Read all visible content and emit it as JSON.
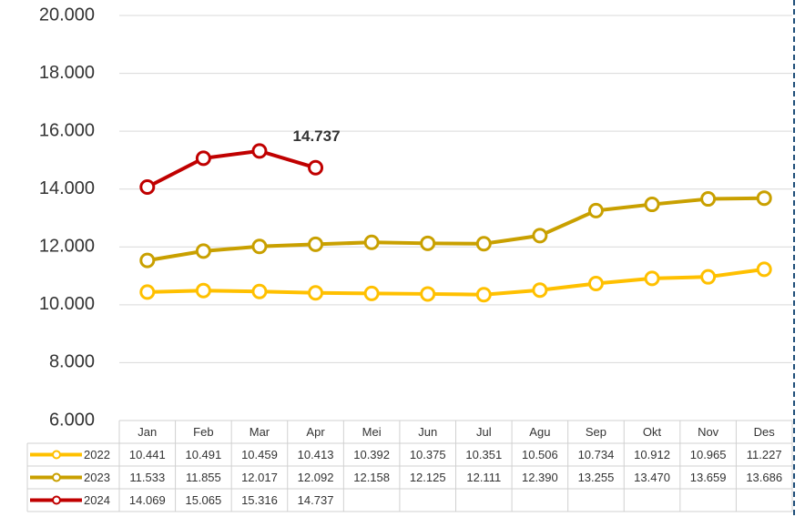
{
  "chart_data": {
    "type": "line",
    "categories": [
      "Jan",
      "Feb",
      "Mar",
      "Apr",
      "Mei",
      "Jun",
      "Jul",
      "Agu",
      "Sep",
      "Okt",
      "Nov",
      "Des"
    ],
    "series": [
      {
        "name": "2022",
        "color": "#ffc000",
        "values": [
          10441,
          10491,
          10459,
          10413,
          10392,
          10375,
          10351,
          10506,
          10734,
          10912,
          10965,
          11227
        ],
        "value_labels": [
          "10.441",
          "10.491",
          "10.459",
          "10.413",
          "10.392",
          "10.375",
          "10.351",
          "10.506",
          "10.734",
          "10.912",
          "10.965",
          "11.227"
        ]
      },
      {
        "name": "2023",
        "color": "#c9a000",
        "values": [
          11533,
          11855,
          12017,
          12092,
          12158,
          12125,
          12111,
          12390,
          13255,
          13470,
          13659,
          13686
        ],
        "value_labels": [
          "11.533",
          "11.855",
          "12.017",
          "12.092",
          "12.158",
          "12.125",
          "12.111",
          "12.390",
          "13.255",
          "13.470",
          "13.659",
          "13.686"
        ]
      },
      {
        "name": "2024",
        "color": "#c00000",
        "values": [
          14069,
          15065,
          15316,
          14737,
          null,
          null,
          null,
          null,
          null,
          null,
          null,
          null
        ],
        "value_labels": [
          "14.069",
          "15.065",
          "15.316",
          "14.737",
          null,
          null,
          null,
          null,
          null,
          null,
          null,
          null
        ]
      }
    ],
    "ylim": [
      6000,
      20000
    ],
    "yticks": [
      {
        "value": 6000,
        "label": "6.000"
      },
      {
        "value": 8000,
        "label": "8.000"
      },
      {
        "value": 10000,
        "label": "10.000"
      },
      {
        "value": 12000,
        "label": "12.000"
      },
      {
        "value": 14000,
        "label": "14.000"
      },
      {
        "value": 16000,
        "label": "16.000"
      },
      {
        "value": 18000,
        "label": "18.000"
      },
      {
        "value": 20000,
        "label": "20.000"
      }
    ],
    "grid": true
  }
}
